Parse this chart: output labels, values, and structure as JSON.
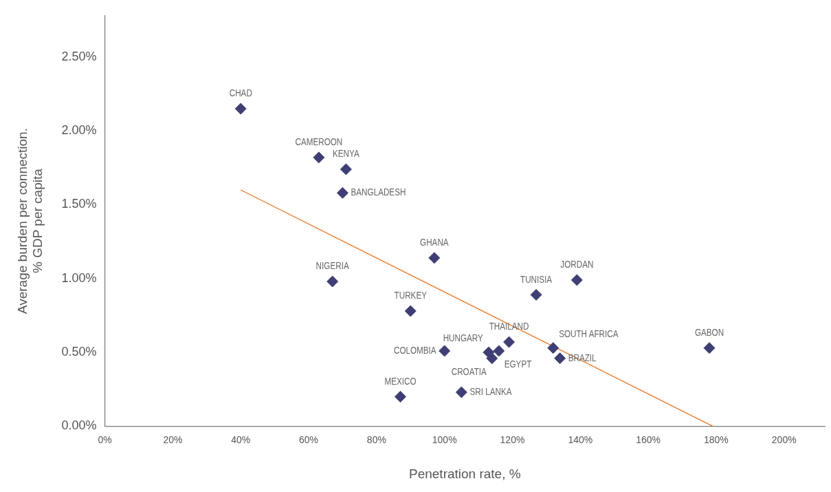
{
  "chart_data": {
    "type": "scatter",
    "xlabel": "Penetration rate, %",
    "ylabel": "Average burden per connection.\n% GDP per capita",
    "xlim": [
      0,
      212
    ],
    "ylim": [
      0,
      2.78
    ],
    "xticks": [
      {
        "value": 0,
        "label": "0%"
      },
      {
        "value": 20,
        "label": "20%"
      },
      {
        "value": 40,
        "label": "40%"
      },
      {
        "value": 60,
        "label": "60%"
      },
      {
        "value": 80,
        "label": "80%"
      },
      {
        "value": 100,
        "label": "100%"
      },
      {
        "value": 120,
        "label": "120%"
      },
      {
        "value": 140,
        "label": "140%"
      },
      {
        "value": 160,
        "label": "160%"
      },
      {
        "value": 180,
        "label": "180%"
      },
      {
        "value": 200,
        "label": "200%"
      }
    ],
    "yticks": [
      {
        "value": 0,
        "label": "0.00%"
      },
      {
        "value": 0.5,
        "label": "0.50%"
      },
      {
        "value": 1,
        "label": "1.00%"
      },
      {
        "value": 1.5,
        "label": "1.50%"
      },
      {
        "value": 2,
        "label": "2.00%"
      },
      {
        "value": 2.5,
        "label": "2.50%"
      }
    ],
    "grid": false,
    "legend": false,
    "series": [
      {
        "color": "#3f3f75",
        "marker": "diamond",
        "x": [
          40,
          63,
          71,
          70,
          97,
          67,
          90,
          127,
          139,
          119,
          113,
          116,
          114,
          100,
          132,
          134,
          178,
          87,
          105
        ],
        "values": [
          2.15,
          1.82,
          1.74,
          1.58,
          1.14,
          0.98,
          0.78,
          0.89,
          0.99,
          0.57,
          0.5,
          0.51,
          0.46,
          0.51,
          0.53,
          0.46,
          0.53,
          0.2,
          0.23
        ]
      },
      {
        "type": "line",
        "color": "#e87722",
        "marker": "none",
        "x": [
          40,
          179
        ],
        "values": [
          1.6,
          0
        ]
      }
    ],
    "annotations": [
      {
        "text": "CHAD",
        "x": 40,
        "y": 2.15
      },
      {
        "text": "CAMEROON",
        "x": 63,
        "y": 1.82
      },
      {
        "text": "KENYA",
        "x": 71,
        "y": 1.74
      },
      {
        "text": "BANGLADESH",
        "x": 70,
        "y": 1.58
      },
      {
        "text": "GHANA",
        "x": 97,
        "y": 1.14
      },
      {
        "text": "NIGERIA",
        "x": 67,
        "y": 0.98
      },
      {
        "text": "TURKEY",
        "x": 90,
        "y": 0.78
      },
      {
        "text": "TUNISIA",
        "x": 127,
        "y": 0.89
      },
      {
        "text": "JORDAN",
        "x": 139,
        "y": 0.99
      },
      {
        "text": "THAILAND",
        "x": 119,
        "y": 0.57
      },
      {
        "text": "HUNGARY",
        "x": 113,
        "y": 0.5
      },
      {
        "text": "EGYPT",
        "x": 116,
        "y": 0.51
      },
      {
        "text": "CROATIA",
        "x": 114,
        "y": 0.46
      },
      {
        "text": "COLOMBIA",
        "x": 100,
        "y": 0.51
      },
      {
        "text": "SOUTH AFRICA",
        "x": 132,
        "y": 0.53
      },
      {
        "text": "BRAZIL",
        "x": 134,
        "y": 0.46
      },
      {
        "text": "GABON",
        "x": 178,
        "y": 0.53
      },
      {
        "text": "MEXICO",
        "x": 87,
        "y": 0.2
      },
      {
        "text": "SRI LANKA",
        "x": 105,
        "y": 0.23
      }
    ]
  }
}
